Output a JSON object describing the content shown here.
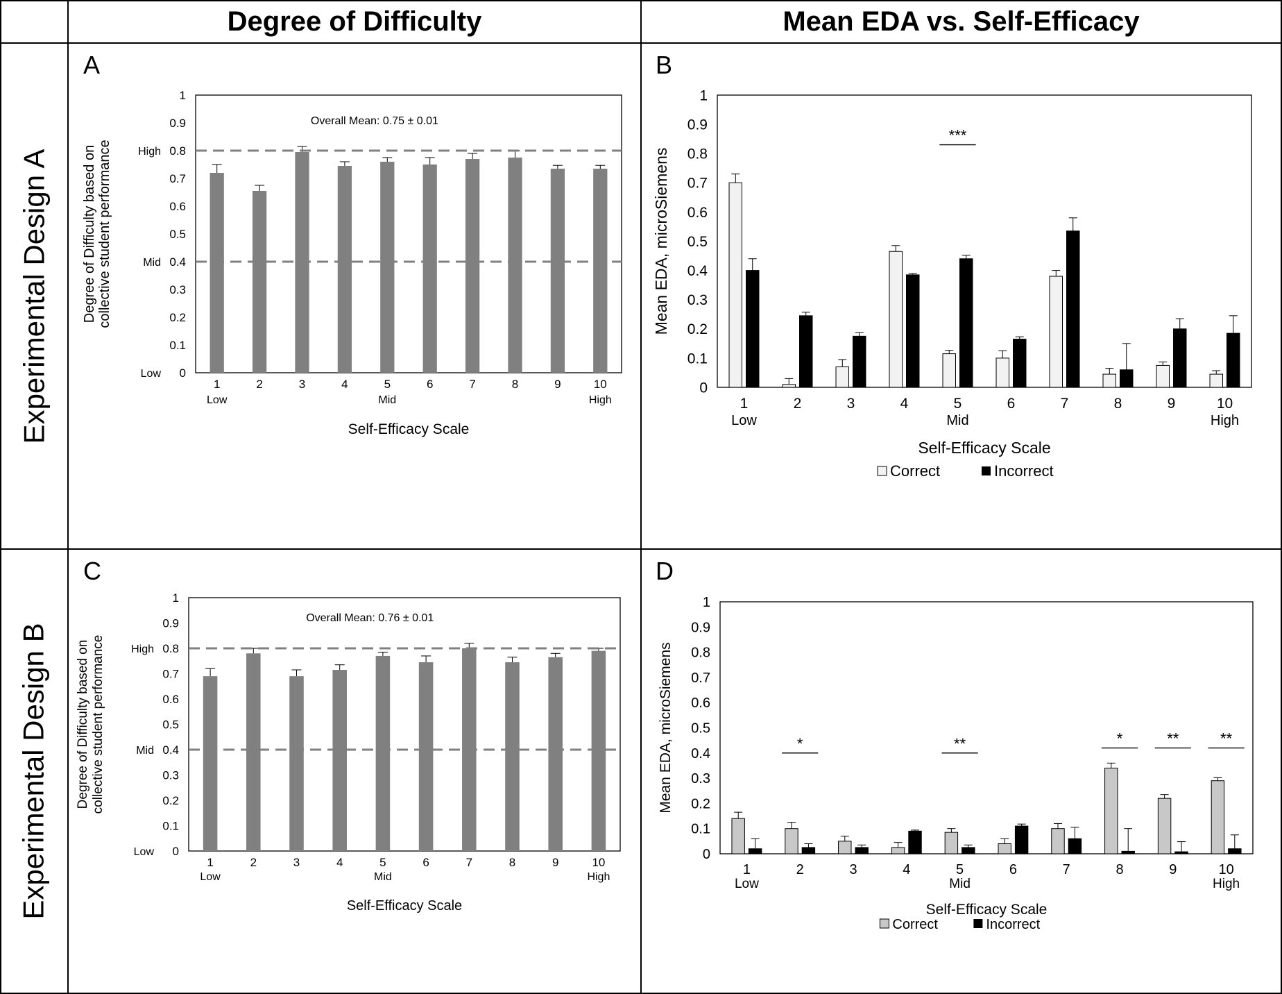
{
  "headers": {
    "col1": "Degree of Difficulty",
    "col2": "Mean EDA vs. Self-Efficacy"
  },
  "row_labels": {
    "row1": "Experimental Design A",
    "row2": "Experimental Design B"
  },
  "panels": {
    "a": "A",
    "b": "B",
    "c": "C",
    "d": "D"
  },
  "colors": {
    "difficulty_bar": "#808080",
    "correct_A": "#f2f2f2",
    "correct_B": "#c8c8c8",
    "incorrect": "#000000",
    "reference_line": "#808080"
  },
  "chart_data": [
    {
      "id": "A",
      "type": "bar",
      "categories": [
        "1",
        "2",
        "3",
        "4",
        "5",
        "6",
        "7",
        "8",
        "9",
        "10"
      ],
      "category_sublabels": [
        "Low",
        "",
        "",
        "",
        "Mid",
        "",
        "",
        "",
        "",
        "High"
      ],
      "values": [
        0.72,
        0.655,
        0.795,
        0.745,
        0.76,
        0.75,
        0.77,
        0.775,
        0.735,
        0.735
      ],
      "errors": [
        0.03,
        0.02,
        0.02,
        0.015,
        0.015,
        0.025,
        0.02,
        0.025,
        0.012,
        0.012
      ],
      "reference_lines": [
        0.8,
        0.4
      ],
      "annotation": "Overall Mean: 0.75 ± 0.01",
      "xlabel": "Self-Efficacy Scale",
      "ylabel": [
        "Degree of Difficulty based on",
        "collective student performance"
      ],
      "ylim": [
        0,
        1
      ],
      "yticks": [
        "0",
        "0.1",
        "0.2",
        "0.3",
        "0.4",
        "0.5",
        "0.6",
        "0.7",
        "0.8",
        "0.9",
        "1"
      ],
      "ytick_prefix": {
        "0": "Low",
        "0.4": "Mid",
        "0.8": "High"
      }
    },
    {
      "id": "B",
      "type": "bar",
      "categories": [
        "1",
        "2",
        "3",
        "4",
        "5",
        "6",
        "7",
        "8",
        "9",
        "10"
      ],
      "category_sublabels": [
        "Low",
        "",
        "",
        "",
        "Mid",
        "",
        "",
        "",
        "",
        "High"
      ],
      "series": [
        {
          "name": "Correct",
          "values": [
            0.7,
            0.01,
            0.07,
            0.465,
            0.115,
            0.1,
            0.38,
            0.045,
            0.075,
            0.045
          ],
          "errors": [
            0.03,
            0.02,
            0.025,
            0.02,
            0.012,
            0.025,
            0.02,
            0.02,
            0.012,
            0.012
          ]
        },
        {
          "name": "Incorrect",
          "values": [
            0.4,
            0.245,
            0.175,
            0.385,
            0.44,
            0.165,
            0.535,
            0.06,
            0.2,
            0.185
          ],
          "errors": [
            0.04,
            0.012,
            0.012,
            0.004,
            0.012,
            0.008,
            0.045,
            0.09,
            0.035,
            0.06
          ]
        }
      ],
      "significance": [
        {
          "category": "5",
          "label": "***",
          "level": 0.83
        }
      ],
      "xlabel": "Self-Efficacy Scale",
      "ylabel": "Mean EDA, microSiemens",
      "ylim": [
        0,
        1
      ],
      "yticks": [
        "0",
        "0.1",
        "0.2",
        "0.3",
        "0.4",
        "0.5",
        "0.6",
        "0.7",
        "0.8",
        "0.9",
        "1"
      ],
      "legend": [
        "Correct",
        "Incorrect"
      ]
    },
    {
      "id": "C",
      "type": "bar",
      "categories": [
        "1",
        "2",
        "3",
        "4",
        "5",
        "6",
        "7",
        "8",
        "9",
        "10"
      ],
      "category_sublabels": [
        "Low",
        "",
        "",
        "",
        "Mid",
        "",
        "",
        "",
        "",
        "High"
      ],
      "values": [
        0.69,
        0.78,
        0.69,
        0.715,
        0.77,
        0.745,
        0.8,
        0.745,
        0.765,
        0.79
      ],
      "errors": [
        0.03,
        0.02,
        0.025,
        0.02,
        0.015,
        0.025,
        0.02,
        0.02,
        0.015,
        0.01
      ],
      "reference_lines": [
        0.8,
        0.4
      ],
      "annotation": "Overall Mean: 0.76 ± 0.01",
      "xlabel": "Self-Efficacy Scale",
      "ylabel": [
        "Degree of Difficulty based on",
        "collective student performance"
      ],
      "ylim": [
        0,
        1
      ],
      "yticks": [
        "0",
        "0.1",
        "0.2",
        "0.3",
        "0.4",
        "0.5",
        "0.6",
        "0.7",
        "0.8",
        "0.9",
        "1"
      ],
      "ytick_prefix": {
        "0": "Low",
        "0.4": "Mid",
        "0.8": "High"
      }
    },
    {
      "id": "D",
      "type": "bar",
      "categories": [
        "1",
        "2",
        "3",
        "4",
        "5",
        "6",
        "7",
        "8",
        "9",
        "10"
      ],
      "category_sublabels": [
        "Low",
        "",
        "",
        "",
        "Mid",
        "",
        "",
        "",
        "",
        "High"
      ],
      "series": [
        {
          "name": "Correct",
          "values": [
            0.14,
            0.1,
            0.05,
            0.025,
            0.085,
            0.04,
            0.1,
            0.34,
            0.22,
            0.29
          ],
          "errors": [
            0.025,
            0.025,
            0.02,
            0.02,
            0.015,
            0.02,
            0.02,
            0.02,
            0.015,
            0.012
          ]
        },
        {
          "name": "Incorrect",
          "values": [
            0.02,
            0.025,
            0.025,
            0.09,
            0.025,
            0.11,
            0.06,
            0.01,
            0.008,
            0.02
          ],
          "errors": [
            0.04,
            0.015,
            0.01,
            0.004,
            0.01,
            0.008,
            0.045,
            0.09,
            0.04,
            0.055
          ]
        }
      ],
      "significance": [
        {
          "category": "2",
          "label": "*",
          "level": 0.4
        },
        {
          "category": "5",
          "label": "**",
          "level": 0.4
        },
        {
          "category": "8",
          "label": "*",
          "level": 0.42
        },
        {
          "category": "9",
          "label": "**",
          "level": 0.42
        },
        {
          "category": "10",
          "label": "**",
          "level": 0.42
        }
      ],
      "xlabel": "Self-Efficacy Scale",
      "ylabel": "Mean EDA, microSiemens",
      "ylim": [
        0,
        1
      ],
      "yticks": [
        "0",
        "0.1",
        "0.2",
        "0.3",
        "0.4",
        "0.5",
        "0.6",
        "0.7",
        "0.8",
        "0.9",
        "1"
      ],
      "legend": [
        "Correct",
        "Incorrect"
      ]
    }
  ]
}
